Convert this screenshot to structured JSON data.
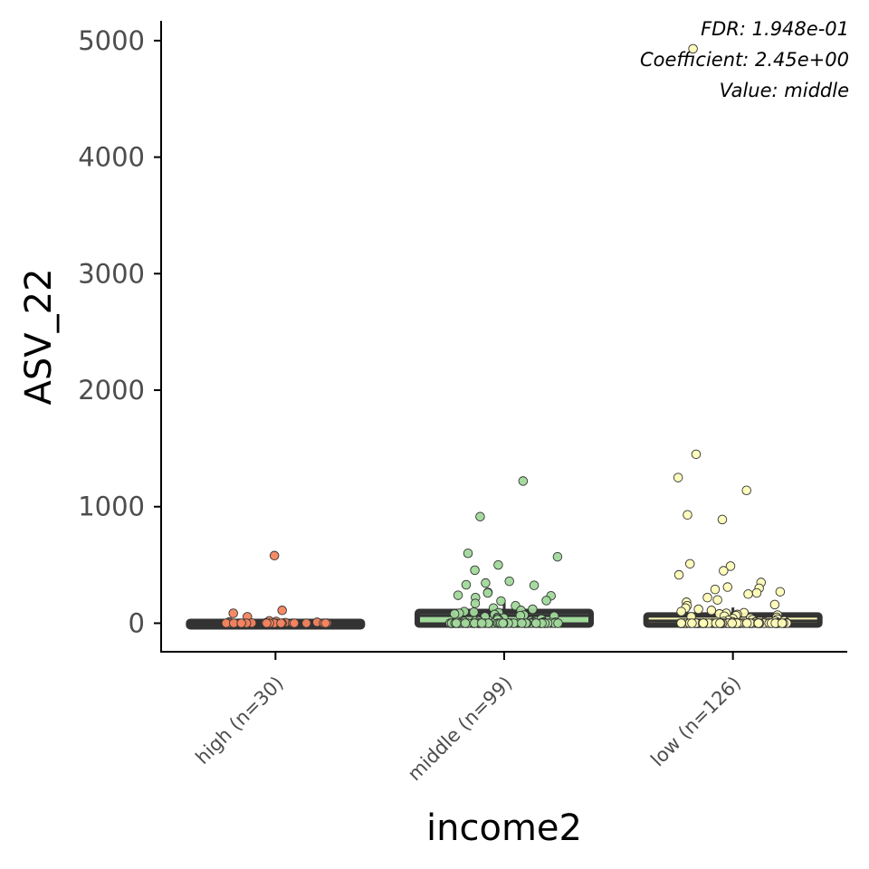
{
  "chart_data": {
    "type": "box",
    "xlabel": "income2",
    "ylabel": "ASV_22",
    "ylim": [
      -245,
      5170
    ],
    "yticks": [
      0,
      1000,
      2000,
      3000,
      4000,
      5000
    ],
    "grid": false,
    "annotations": [
      "FDR: 1.948e-01",
      "Coefficient: 2.45e+00",
      "Value: middle"
    ],
    "categories": [
      "high (n=30)",
      "middle (n=99)",
      "low (n=126)"
    ],
    "groups": [
      {
        "label": "high (n=30)",
        "color": "#f4845f",
        "box": {
          "q1": 0,
          "median": 0,
          "q3": 0,
          "whisker_low": 0,
          "whisker_high": 0
        },
        "points": [
          580,
          110,
          85,
          55,
          20,
          15,
          10,
          8,
          5,
          3,
          2,
          0,
          0,
          0,
          0,
          0,
          0,
          0,
          0,
          0,
          0,
          0,
          0,
          0,
          0,
          0,
          0,
          0,
          0,
          0
        ]
      },
      {
        "label": "middle (n=99)",
        "color": "#a1d99b",
        "box": {
          "q1": 0,
          "median": 65,
          "q3": 85,
          "whisker_low": 0,
          "whisker_high": 195
        },
        "points": [
          1220,
          915,
          600,
          570,
          500,
          455,
          360,
          345,
          330,
          325,
          265,
          260,
          240,
          235,
          220,
          195,
          190,
          170,
          150,
          130,
          120,
          110,
          100,
          95,
          90,
          85,
          80,
          75,
          70,
          65,
          60,
          55,
          50,
          45,
          40,
          35,
          30,
          30,
          25,
          20,
          20,
          15,
          15,
          10,
          10,
          8,
          6,
          5,
          4,
          3,
          2,
          1,
          0,
          0,
          0,
          0,
          0,
          0,
          0,
          0,
          0,
          0,
          0,
          0,
          0,
          0,
          0,
          0,
          0,
          0,
          0,
          0,
          0,
          0,
          0,
          0,
          0,
          0,
          0,
          0,
          0,
          0,
          0,
          0,
          0,
          0,
          0,
          0,
          0,
          0,
          0,
          0,
          0,
          0,
          0,
          0,
          0,
          0,
          0
        ]
      },
      {
        "label": "low (n=126)",
        "color": "#fffcb8",
        "box": {
          "q1": 0,
          "median": 20,
          "q3": 55,
          "whisker_low": 0,
          "whisker_high": 135
        },
        "points": [
          4930,
          1450,
          1250,
          1140,
          930,
          890,
          510,
          490,
          450,
          415,
          350,
          310,
          300,
          290,
          270,
          260,
          250,
          220,
          200,
          180,
          160,
          150,
          130,
          120,
          110,
          100,
          90,
          85,
          80,
          75,
          70,
          65,
          60,
          55,
          50,
          45,
          40,
          35,
          30,
          25,
          20,
          18,
          15,
          12,
          10,
          8,
          6,
          5,
          4,
          3,
          2,
          1,
          0,
          0,
          0,
          0,
          0,
          0,
          0,
          0,
          0,
          0,
          0,
          0,
          0,
          0,
          0,
          0,
          0,
          0,
          0,
          0,
          0,
          0,
          0,
          0,
          0,
          0,
          0,
          0,
          0,
          0,
          0,
          0,
          0,
          0,
          0,
          0,
          0,
          0,
          0,
          0,
          0,
          0,
          0,
          0,
          0,
          0,
          0,
          0,
          0,
          0,
          0,
          0,
          0,
          0,
          0,
          0,
          0,
          0,
          0,
          0,
          0,
          0,
          0,
          0,
          0,
          0,
          0,
          0,
          0,
          0,
          0,
          0,
          0,
          0
        ]
      }
    ]
  }
}
